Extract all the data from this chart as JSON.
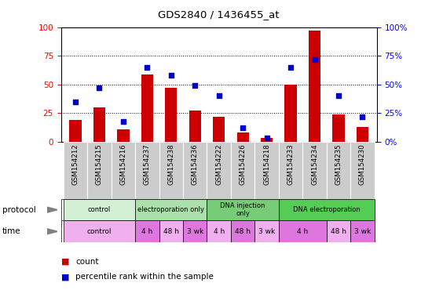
{
  "title": "GDS2840 / 1436455_at",
  "samples": [
    "GSM154212",
    "GSM154215",
    "GSM154216",
    "GSM154237",
    "GSM154238",
    "GSM154236",
    "GSM154222",
    "GSM154226",
    "GSM154218",
    "GSM154233",
    "GSM154234",
    "GSM154235",
    "GSM154230"
  ],
  "count_values": [
    19,
    30,
    11,
    59,
    47,
    27,
    22,
    8,
    3,
    50,
    97,
    24,
    13
  ],
  "percentile_values": [
    35,
    47,
    18,
    65,
    58,
    49,
    40,
    12,
    3,
    65,
    72,
    40,
    22
  ],
  "bar_color": "#cc0000",
  "dot_color": "#0000cc",
  "ylim": [
    0,
    100
  ],
  "yticks": [
    0,
    25,
    50,
    75,
    100
  ],
  "grid_lines": [
    25,
    50,
    75
  ],
  "xticklabel_bg": "#cccccc",
  "protocol_groups": [
    {
      "label": "control",
      "start": 0,
      "end": 3,
      "color": "#d4f0d4"
    },
    {
      "label": "electroporation only",
      "start": 3,
      "end": 6,
      "color": "#aae0aa"
    },
    {
      "label": "DNA injection\nonly",
      "start": 6,
      "end": 9,
      "color": "#77cc77"
    },
    {
      "label": "DNA electroporation",
      "start": 9,
      "end": 13,
      "color": "#55cc55"
    }
  ],
  "time_groups": [
    {
      "label": "control",
      "start": 0,
      "end": 3,
      "color": "#f0b0f0"
    },
    {
      "label": "4 h",
      "start": 3,
      "end": 4,
      "color": "#dd77dd"
    },
    {
      "label": "48 h",
      "start": 4,
      "end": 5,
      "color": "#f0b0f0"
    },
    {
      "label": "3 wk",
      "start": 5,
      "end": 6,
      "color": "#dd77dd"
    },
    {
      "label": "4 h",
      "start": 6,
      "end": 7,
      "color": "#f0b0f0"
    },
    {
      "label": "48 h",
      "start": 7,
      "end": 8,
      "color": "#dd77dd"
    },
    {
      "label": "3 wk",
      "start": 8,
      "end": 9,
      "color": "#f0b0f0"
    },
    {
      "label": "4 h",
      "start": 9,
      "end": 11,
      "color": "#dd77dd"
    },
    {
      "label": "48 h",
      "start": 11,
      "end": 12,
      "color": "#f0b0f0"
    },
    {
      "label": "3 wk",
      "start": 12,
      "end": 13,
      "color": "#dd77dd"
    }
  ]
}
